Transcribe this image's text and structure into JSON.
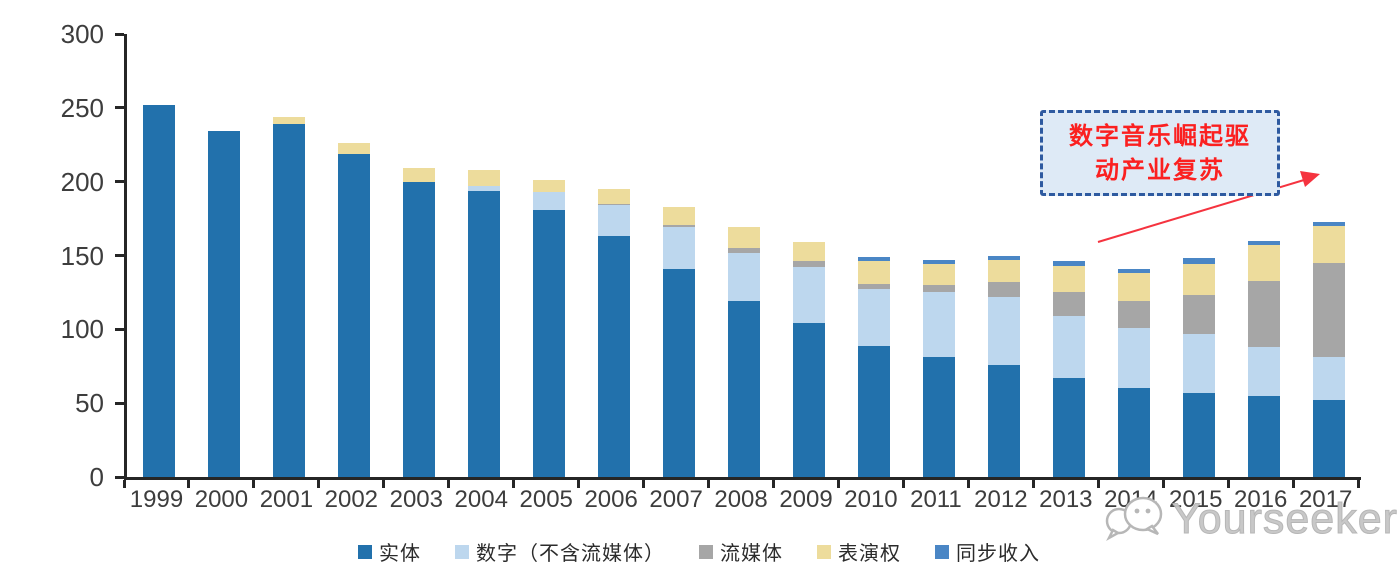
{
  "chart_data": {
    "type": "bar",
    "stacked": true,
    "title": "",
    "xlabel": "",
    "ylabel": "",
    "categories": [
      "1999",
      "2000",
      "2001",
      "2002",
      "2003",
      "2004",
      "2005",
      "2006",
      "2007",
      "2008",
      "2009",
      "2010",
      "2011",
      "2012",
      "2013",
      "2014",
      "2015",
      "2016",
      "2017"
    ],
    "series": [
      {
        "key": "physical",
        "name": "实体",
        "color": "#2271AC",
        "values": [
          252,
          234,
          239,
          219,
          200,
          194,
          181,
          163,
          141,
          119,
          104,
          89,
          81,
          76,
          67,
          60,
          57,
          55,
          52
        ]
      },
      {
        "key": "digital-ex-streaming",
        "name": "数字（不含流媒体）",
        "color": "#BDD7EE",
        "values": [
          0,
          0,
          0,
          0,
          0,
          3,
          12,
          21,
          28,
          33,
          38,
          38,
          44,
          46,
          42,
          41,
          40,
          33,
          29
        ]
      },
      {
        "key": "streaming",
        "name": "流媒体",
        "color": "#A6A6A6",
        "values": [
          0,
          0,
          0,
          0,
          0,
          0,
          0,
          1,
          2,
          3,
          4,
          4,
          5,
          10,
          16,
          18,
          26,
          45,
          64
        ]
      },
      {
        "key": "performance-rights",
        "name": "表演权",
        "color": "#EDDC9C",
        "values": [
          0,
          0,
          5,
          7,
          9,
          11,
          8,
          10,
          12,
          14,
          13,
          15,
          14,
          15,
          18,
          19,
          21,
          24,
          25
        ]
      },
      {
        "key": "sync",
        "name": "同步收入",
        "color": "#4A86C5",
        "values": [
          0,
          0,
          0,
          0,
          0,
          0,
          0,
          0,
          0,
          0,
          0,
          3,
          3,
          3,
          3,
          3,
          4,
          3,
          3
        ]
      }
    ],
    "ylim": [
      0,
      300
    ],
    "yticks": [
      300,
      250,
      200,
      150,
      100,
      50,
      0
    ],
    "grid": false,
    "legend_position": "bottom"
  },
  "annotation": {
    "line1": "数字音乐崛起驱",
    "line2": "动产业复苏",
    "text_color": "#FB2020",
    "box_fill": "#DEEAF6",
    "box_border": "#2E5AA0",
    "arrow_color": "#F5333F"
  },
  "watermark": {
    "text": "Yourseeker",
    "color": "#C6C6C6"
  }
}
